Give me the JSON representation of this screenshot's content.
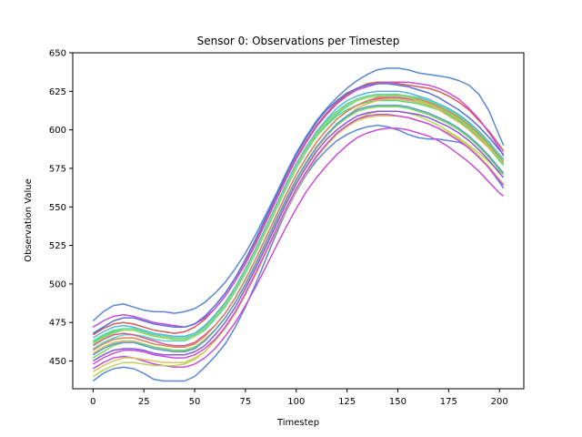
{
  "chart_data": {
    "type": "line",
    "title": "Sensor 0: Observations per Timestep",
    "xlabel": "Timestep",
    "ylabel": "Observation Value",
    "xlim": [
      -10,
      212
    ],
    "ylim": [
      432,
      650
    ],
    "xticks": [
      0,
      25,
      50,
      75,
      100,
      125,
      150,
      175,
      200
    ],
    "yticks": [
      450,
      475,
      500,
      525,
      550,
      575,
      600,
      625,
      650
    ],
    "xtick_labels": [
      "0",
      "25",
      "50",
      "75",
      "100",
      "125",
      "150",
      "175",
      "200"
    ],
    "ytick_labels": [
      "450",
      "475",
      "500",
      "525",
      "550",
      "575",
      "600",
      "625",
      "650"
    ],
    "grid": false,
    "legend": false,
    "x": [
      0,
      5,
      10,
      15,
      20,
      25,
      30,
      35,
      40,
      45,
      50,
      55,
      60,
      65,
      70,
      75,
      80,
      85,
      90,
      95,
      100,
      105,
      110,
      115,
      120,
      125,
      130,
      135,
      140,
      145,
      150,
      155,
      160,
      165,
      170,
      175,
      180,
      185,
      190,
      195,
      200,
      202
    ],
    "series": [
      {
        "color": "#5b87d8",
        "values": [
          476,
          482,
          486,
          487,
          485,
          483,
          482,
          482,
          481,
          482,
          484,
          488,
          494,
          501,
          510,
          520,
          532,
          545,
          558,
          572,
          585,
          596,
          606,
          614,
          621,
          627,
          632,
          636,
          639,
          640,
          640,
          639,
          637,
          636,
          635,
          634,
          632,
          629,
          623,
          612,
          596,
          590
        ]
      },
      {
        "color": "#5b87d8",
        "values": [
          437,
          442,
          445,
          446,
          445,
          442,
          438,
          437,
          437,
          437,
          440,
          446,
          453,
          461,
          472,
          485,
          500,
          516,
          532,
          547,
          560,
          571,
          580,
          587,
          593,
          597,
          600,
          602,
          603,
          602,
          600,
          597,
          595,
          594,
          594,
          593,
          592,
          589,
          583,
          575,
          566,
          562
        ]
      },
      {
        "color": "#d65a5a",
        "values": [
          467,
          471,
          474,
          475,
          474,
          472,
          470,
          469,
          468,
          469,
          472,
          477,
          484,
          492,
          502,
          514,
          527,
          541,
          555,
          569,
          582,
          593,
          603,
          611,
          618,
          623,
          627,
          630,
          631,
          631,
          630,
          629,
          628,
          627,
          625,
          622,
          618,
          613,
          606,
          599,
          590,
          586
        ]
      },
      {
        "color": "#c94fd6",
        "values": [
          472,
          476,
          479,
          480,
          479,
          477,
          475,
          474,
          473,
          472,
          474,
          478,
          484,
          492,
          502,
          513,
          526,
          540,
          554,
          568,
          581,
          592,
          602,
          610,
          617,
          622,
          626,
          628,
          630,
          631,
          631,
          631,
          630,
          629,
          627,
          624,
          620,
          614,
          607,
          598,
          588,
          583
        ]
      },
      {
        "color": "#c94fd6",
        "values": [
          445,
          449,
          452,
          453,
          452,
          450,
          448,
          447,
          446,
          446,
          448,
          452,
          458,
          466,
          475,
          486,
          498,
          511,
          524,
          537,
          549,
          560,
          569,
          577,
          584,
          590,
          595,
          598,
          600,
          601,
          601,
          600,
          598,
          596,
          593,
          589,
          584,
          579,
          573,
          566,
          559,
          557
        ]
      },
      {
        "color": "#b9d65a",
        "values": [
          440,
          444,
          447,
          449,
          449,
          448,
          447,
          447,
          447,
          448,
          451,
          456,
          463,
          471,
          481,
          493,
          506,
          520,
          534,
          548,
          561,
          572,
          582,
          590,
          597,
          603,
          607,
          610,
          612,
          612,
          612,
          611,
          609,
          606,
          603,
          599,
          595,
          590,
          585,
          579,
          573,
          571
        ]
      },
      {
        "color": "#5ad6c9",
        "values": [
          458,
          462,
          465,
          467,
          467,
          466,
          464,
          463,
          463,
          463,
          466,
          470,
          477,
          485,
          495,
          507,
          520,
          534,
          548,
          562,
          575,
          586,
          596,
          604,
          610,
          615,
          619,
          621,
          622,
          622,
          622,
          621,
          619,
          617,
          614,
          611,
          607,
          602,
          596,
          589,
          581,
          578
        ]
      },
      {
        "color": "#5ad67a",
        "values": [
          462,
          466,
          469,
          470,
          470,
          468,
          466,
          465,
          464,
          464,
          466,
          471,
          478,
          486,
          496,
          508,
          521,
          535,
          549,
          563,
          576,
          587,
          596,
          603,
          609,
          613,
          616,
          618,
          619,
          619,
          619,
          618,
          617,
          615,
          613,
          610,
          606,
          601,
          595,
          588,
          580,
          577
        ]
      },
      {
        "color": "#d6b95a",
        "values": [
          455,
          459,
          462,
          463,
          463,
          461,
          459,
          458,
          457,
          457,
          459,
          464,
          470,
          478,
          488,
          499,
          512,
          526,
          540,
          554,
          567,
          578,
          588,
          596,
          603,
          609,
          614,
          617,
          619,
          620,
          620,
          619,
          618,
          616,
          613,
          609,
          605,
          600,
          594,
          588,
          581,
          579
        ]
      },
      {
        "color": "#8a5ad6",
        "values": [
          450,
          454,
          457,
          458,
          458,
          457,
          455,
          454,
          454,
          454,
          456,
          460,
          467,
          475,
          485,
          497,
          510,
          524,
          538,
          552,
          565,
          576,
          586,
          594,
          600,
          605,
          609,
          611,
          612,
          612,
          612,
          611,
          610,
          608,
          605,
          602,
          598,
          593,
          587,
          580,
          572,
          569
        ]
      },
      {
        "color": "#5ab9d6",
        "values": [
          465,
          469,
          472,
          473,
          472,
          470,
          468,
          467,
          466,
          466,
          468,
          473,
          480,
          488,
          498,
          510,
          523,
          537,
          551,
          565,
          578,
          589,
          599,
          607,
          614,
          619,
          622,
          624,
          625,
          625,
          625,
          624,
          622,
          620,
          617,
          614,
          610,
          605,
          599,
          592,
          584,
          581
        ]
      },
      {
        "color": "#d65a9b",
        "values": [
          460,
          464,
          467,
          468,
          467,
          465,
          463,
          461,
          460,
          460,
          462,
          467,
          473,
          481,
          491,
          503,
          516,
          530,
          544,
          558,
          571,
          582,
          592,
          600,
          607,
          612,
          616,
          619,
          620,
          621,
          621,
          620,
          619,
          617,
          614,
          611,
          607,
          602,
          596,
          589,
          581,
          578
        ]
      },
      {
        "color": "#7ad65a",
        "values": [
          452,
          456,
          460,
          462,
          462,
          461,
          459,
          458,
          457,
          457,
          459,
          463,
          470,
          478,
          488,
          500,
          513,
          527,
          541,
          555,
          568,
          579,
          589,
          597,
          603,
          608,
          612,
          614,
          615,
          615,
          615,
          614,
          612,
          610,
          607,
          604,
          600,
          595,
          589,
          582,
          574,
          571
        ]
      },
      {
        "color": "#5a6fd6",
        "values": [
          468,
          472,
          476,
          478,
          478,
          476,
          474,
          473,
          472,
          472,
          474,
          479,
          486,
          494,
          504,
          516,
          529,
          543,
          557,
          571,
          584,
          595,
          605,
          613,
          619,
          624,
          627,
          629,
          630,
          630,
          629,
          628,
          626,
          624,
          621,
          617,
          613,
          608,
          602,
          595,
          587,
          584
        ]
      },
      {
        "color": "#d6c95a",
        "values": [
          443,
          447,
          450,
          452,
          452,
          451,
          450,
          449,
          449,
          449,
          452,
          456,
          463,
          471,
          481,
          493,
          506,
          520,
          534,
          548,
          561,
          572,
          582,
          590,
          597,
          602,
          606,
          608,
          609,
          609,
          609,
          608,
          606,
          604,
          601,
          598,
          594,
          589,
          583,
          576,
          568,
          565
        ]
      },
      {
        "color": "#5ad6a5",
        "values": [
          463,
          467,
          470,
          471,
          471,
          469,
          467,
          466,
          465,
          465,
          467,
          472,
          479,
          487,
          497,
          509,
          522,
          536,
          550,
          564,
          577,
          588,
          598,
          606,
          612,
          617,
          620,
          622,
          623,
          623,
          623,
          622,
          621,
          619,
          616,
          613,
          609,
          604,
          598,
          591,
          583,
          580
        ]
      },
      {
        "color": "#c94fd6",
        "values": [
          448,
          452,
          455,
          457,
          457,
          456,
          454,
          453,
          452,
          452,
          454,
          458,
          464,
          472,
          482,
          494,
          507,
          521,
          535,
          549,
          562,
          573,
          583,
          591,
          598,
          603,
          607,
          609,
          610,
          610,
          609,
          608,
          606,
          604,
          601,
          597,
          593,
          588,
          582,
          575,
          567,
          564
        ]
      },
      {
        "color": "#d6865a",
        "values": [
          457,
          461,
          464,
          465,
          465,
          463,
          461,
          460,
          459,
          459,
          461,
          466,
          473,
          481,
          491,
          503,
          516,
          530,
          544,
          558,
          571,
          582,
          592,
          600,
          607,
          612,
          616,
          619,
          621,
          622,
          622,
          621,
          620,
          618,
          615,
          612,
          608,
          603,
          597,
          590,
          582,
          579
        ]
      },
      {
        "color": "#5a9bd6",
        "values": [
          454,
          458,
          461,
          462,
          462,
          460,
          458,
          457,
          456,
          456,
          458,
          463,
          470,
          478,
          488,
          500,
          513,
          527,
          541,
          555,
          568,
          579,
          589,
          597,
          604,
          609,
          613,
          615,
          616,
          616,
          616,
          615,
          613,
          611,
          608,
          605,
          601,
          596,
          590,
          583,
          575,
          572
        ]
      },
      {
        "color": "#a5d65a",
        "values": [
          461,
          465,
          468,
          470,
          470,
          468,
          466,
          465,
          464,
          464,
          466,
          471,
          478,
          486,
          496,
          508,
          521,
          535,
          549,
          563,
          576,
          587,
          597,
          605,
          611,
          616,
          619,
          621,
          622,
          622,
          622,
          621,
          619,
          617,
          614,
          611,
          607,
          602,
          596,
          589,
          581,
          578
        ]
      }
    ]
  }
}
